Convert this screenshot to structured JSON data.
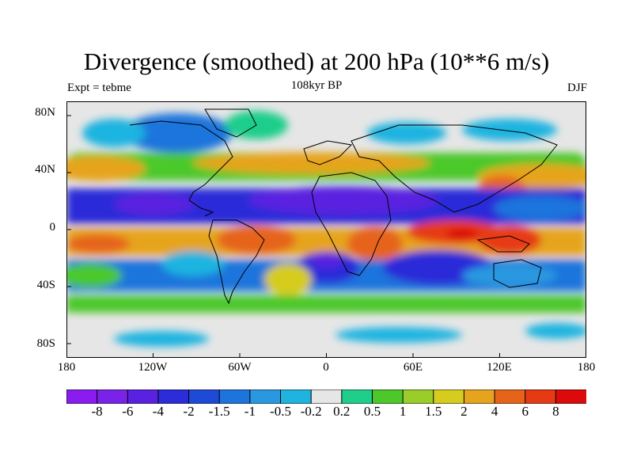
{
  "title": "Divergence (smoothed) at 200 hPa (10**6 m/s)",
  "subtitle_left": "Expt = tebme",
  "subtitle_center": "108kyr BP",
  "subtitle_right": "DJF",
  "chart_data": {
    "type": "heatmap",
    "variable": "Divergence (smoothed) at 200 hPa",
    "units": "10**6 m/s",
    "x_range": [
      -180,
      180
    ],
    "y_range": [
      -90,
      90
    ],
    "x_ticks": [
      "180",
      "120W",
      "60W",
      "0",
      "60E",
      "120E",
      "180"
    ],
    "y_ticks": [
      "80N",
      "40N",
      "0",
      "40S",
      "80S"
    ],
    "colorbar": {
      "labels": [
        "-8",
        "-6",
        "-4",
        "-2",
        "-1.5",
        "-1",
        "-0.5",
        "-0.2",
        "0.2",
        "0.5",
        "1",
        "1.5",
        "2",
        "4",
        "6",
        "8"
      ],
      "colors": [
        "#8a1cf0",
        "#7a22e8",
        "#5a22e0",
        "#2c2cd8",
        "#1f4ad8",
        "#1c74dc",
        "#2a98e0",
        "#1fb4e0",
        "#e6e6e6",
        "#1fce8a",
        "#4cc82a",
        "#9acd2a",
        "#d6cc1e",
        "#e6a41e",
        "#e6641a",
        "#e63a14",
        "#dc0a0a"
      ]
    }
  }
}
